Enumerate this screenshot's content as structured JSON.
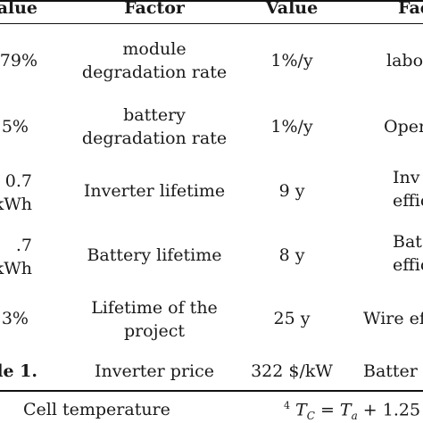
{
  "table": {
    "headers": [
      "alue",
      "Factor",
      "Value",
      "Fac"
    ],
    "rows": [
      {
        "c0": "79%",
        "factor": [
          "module",
          "degradation rate"
        ],
        "value": "1%/y",
        "c3": [
          "labo"
        ]
      },
      {
        "c0": "5%",
        "factor": [
          "battery",
          "degradation rate"
        ],
        "value": "1%/y",
        "c3": [
          "Oper"
        ]
      },
      {
        "c0": [
          "0.7",
          "kWh"
        ],
        "factor": [
          "Inverter lifetime"
        ],
        "value": "9 y",
        "c3": [
          "Inv",
          "effic"
        ]
      },
      {
        "c0": [
          ".7",
          "kWh"
        ],
        "factor": [
          "Battery lifetime"
        ],
        "value": "8 y",
        "c3": [
          "Bat",
          "effic"
        ]
      },
      {
        "c0": "3%",
        "factor": [
          "Lifetime of the",
          "project"
        ],
        "value": "25 y",
        "c3": [
          "Wire ef"
        ]
      },
      {
        "c0": "ble 1.",
        "factor": [
          "Inverter price"
        ],
        "value": "322 $/kW",
        "c3": [
          "Batter"
        ]
      }
    ]
  },
  "footer": {
    "label": "Cell temperature",
    "superscript": "4",
    "formula": "T",
    "sub_c": "C",
    "eq": " = ",
    "formula2": "T",
    "sub_a": "a",
    "rest": " + 1.25"
  }
}
